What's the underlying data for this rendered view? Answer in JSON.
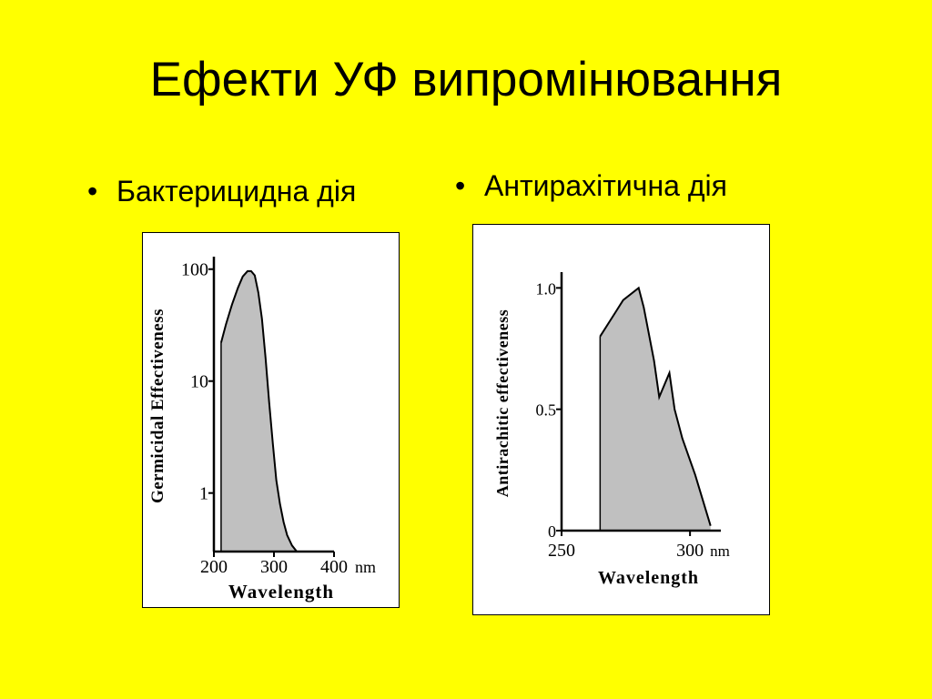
{
  "slide": {
    "title": "Ефекти УФ випромінювання",
    "bullet_symbol": "•",
    "bullets": [
      "Бактерицидна дія",
      "Антирахітична дія"
    ]
  },
  "colors": {
    "background": "#ffff00",
    "fill": "#c0c0c0",
    "line": "#000000"
  },
  "chart_data": [
    {
      "type": "area",
      "title": "",
      "xlabel": "Wavelength",
      "ylabel": "Germicidal Effectiveness",
      "xunit": "nm",
      "yscale": "log",
      "xlim": [
        200,
        400
      ],
      "ylim": [
        0.3,
        120
      ],
      "xticks": [
        200,
        300,
        400
      ],
      "xtick_labels": [
        "200",
        "300",
        "400"
      ],
      "yticks": [
        100,
        10,
        1
      ],
      "ytick_labels": [
        "100",
        "10",
        "1"
      ],
      "grid": false,
      "series": [
        {
          "x": [
            212,
            220,
            230,
            240,
            248,
            256,
            262,
            268,
            274,
            280,
            286,
            292,
            298,
            304,
            310,
            316,
            322,
            330,
            338
          ],
          "values": [
            22,
            32,
            48,
            68,
            86,
            96,
            96,
            88,
            62,
            36,
            16,
            6.5,
            2.8,
            1.3,
            0.8,
            0.55,
            0.42,
            0.34,
            0.3
          ]
        }
      ]
    },
    {
      "type": "area",
      "title": "",
      "xlabel": "Wavelength",
      "ylabel": "Antirachitic effectiveness",
      "xunit": "nm",
      "yscale": "linear",
      "xlim": [
        250,
        312
      ],
      "ylim": [
        0,
        1.05
      ],
      "xticks": [
        250,
        300
      ],
      "xtick_labels": [
        "250",
        "300"
      ],
      "yticks": [
        0,
        0.5,
        1.0
      ],
      "ytick_labels": [
        "0",
        "0.5",
        "1.0"
      ],
      "grid": false,
      "series": [
        {
          "x": [
            265,
            271,
            274,
            280,
            282,
            286,
            288,
            290,
            292,
            294,
            297,
            302,
            308
          ],
          "values": [
            0.8,
            0.9,
            0.95,
            1.0,
            0.92,
            0.7,
            0.55,
            0.6,
            0.65,
            0.5,
            0.38,
            0.23,
            0.02
          ]
        }
      ]
    }
  ]
}
